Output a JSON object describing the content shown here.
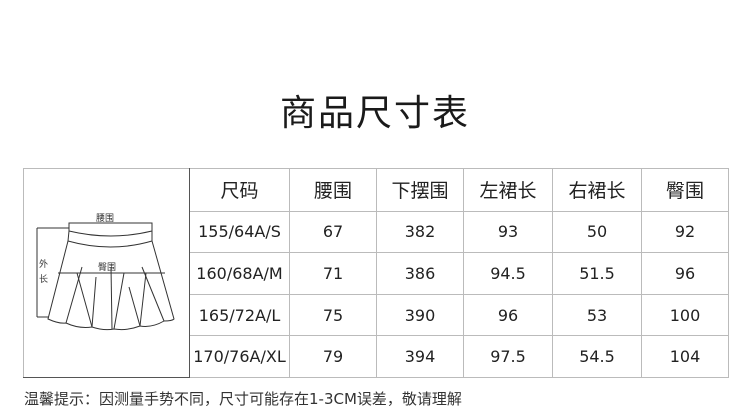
{
  "title": "商品尺寸表",
  "diagram": {
    "waist_label": "腰围",
    "hip_label": "臀围",
    "length_label_1": "外",
    "length_label_2": "长"
  },
  "headers": [
    "尺码",
    "腰围",
    "下摆围",
    "左裙长",
    "右裙长",
    "臀围"
  ],
  "rows": [
    [
      "155/64A/S",
      "67",
      "382",
      "93",
      "50",
      "92"
    ],
    [
      "160/68A/M",
      "71",
      "386",
      "94.5",
      "51.5",
      "96"
    ],
    [
      "165/72A/L",
      "75",
      "390",
      "96",
      "53",
      "100"
    ],
    [
      "170/76A/XL",
      "79",
      "394",
      "97.5",
      "54.5",
      "104"
    ]
  ],
  "note": "温馨提示：因测量手势不同，尺寸可能存在1-3CM误差，敬请理解"
}
